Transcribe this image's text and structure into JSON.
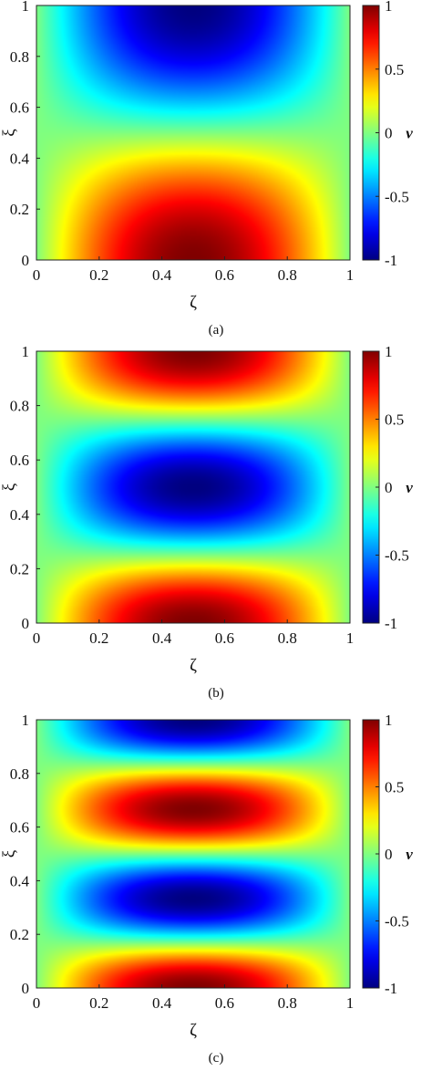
{
  "figure": {
    "captions": [
      "(a)",
      "(b)",
      "(c)"
    ]
  },
  "chart_data": [
    {
      "type": "heatmap",
      "panel": "(a)",
      "xlabel": "ζ",
      "ylabel": "ξ",
      "xlim": [
        0,
        1
      ],
      "ylim": [
        0,
        1
      ],
      "xticks": [
        "0",
        "0.2",
        "0.4",
        "0.6",
        "0.8",
        "1"
      ],
      "yticks": [
        "0",
        "0.2",
        "0.4",
        "0.6",
        "0.8",
        "1"
      ],
      "colorbar": {
        "label": "v",
        "range": [
          -1,
          1
        ],
        "ticks": [
          "1",
          "0.5",
          "0",
          "-0.5",
          "-1"
        ],
        "colormap": "jet"
      },
      "mode": 1,
      "field": "v = cos(1·π·ξ) · sin(π·ζ); max 1 at (ζ=0.5, ξ=0), min -1 at (ζ=0.5, ξ=1)"
    },
    {
      "type": "heatmap",
      "panel": "(b)",
      "xlabel": "ζ",
      "ylabel": "ξ",
      "xlim": [
        0,
        1
      ],
      "ylim": [
        0,
        1
      ],
      "xticks": [
        "0",
        "0.2",
        "0.4",
        "0.6",
        "0.8",
        "1"
      ],
      "yticks": [
        "0",
        "0.2",
        "0.4",
        "0.6",
        "0.8",
        "1"
      ],
      "colorbar": {
        "label": "v",
        "range": [
          -1,
          1
        ],
        "ticks": [
          "1",
          "0.5",
          "0",
          "-0.5",
          "-1"
        ],
        "colormap": "jet"
      },
      "mode": 2,
      "field": "v = cos(2·π·ξ) · sin(π·ζ); max 1 at ξ=0 and ξ=1, min -1 at ξ=0.5"
    },
    {
      "type": "heatmap",
      "panel": "(c)",
      "xlabel": "ζ",
      "ylabel": "ξ",
      "xlim": [
        0,
        1
      ],
      "ylim": [
        0,
        1
      ],
      "xticks": [
        "0",
        "0.2",
        "0.4",
        "0.6",
        "0.8",
        "1"
      ],
      "yticks": [
        "0",
        "0.2",
        "0.4",
        "0.6",
        "0.8",
        "1"
      ],
      "colorbar": {
        "label": "v",
        "range": [
          -1,
          1
        ],
        "ticks": [
          "1",
          "0.5",
          "0",
          "-0.5",
          "-1"
        ],
        "colormap": "jet"
      },
      "mode": 3,
      "field": "v = cos(3·π·ξ) · sin(π·ζ); max 1 at ξ=0 and ξ=2/3, min -1 at ξ=1/3 and ξ=1"
    }
  ]
}
